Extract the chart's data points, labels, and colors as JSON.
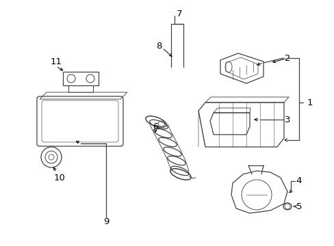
{
  "background_color": "#ffffff",
  "line_color": "#404040",
  "text_color": "#000000",
  "fig_width": 4.89,
  "fig_height": 3.6,
  "dpi": 100
}
